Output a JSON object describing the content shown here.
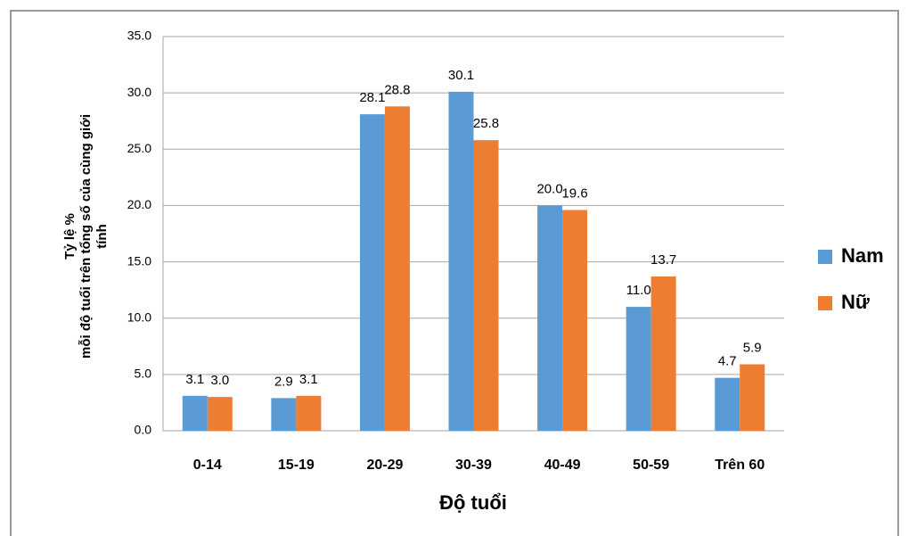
{
  "chart_data": {
    "type": "bar",
    "y_label": [
      "Tỷ lệ %",
      "mỗi độ tuổi trên tổng số của cùng giới",
      "tính"
    ],
    "x_label": "Độ tuổi",
    "categories": [
      "0-14",
      "15-19",
      "20-29",
      "30-39",
      "40-49",
      "50-59",
      "Trên 60"
    ],
    "series": [
      {
        "name": "Nam",
        "color": "#5b9bd5",
        "values": [
          3.1,
          2.9,
          28.1,
          30.1,
          20.0,
          11.0,
          4.7
        ],
        "value_labels": [
          "3.1",
          "2.9",
          "28.1",
          "30.1",
          "20.0",
          "11.0",
          "4.7"
        ]
      },
      {
        "name": "Nữ",
        "color": "#ed7d31",
        "values": [
          3.0,
          3.1,
          28.8,
          25.8,
          19.6,
          13.7,
          5.9
        ],
        "value_labels": [
          "3.0",
          "3.1",
          "28.8",
          "25.8",
          "19.6",
          "13.7",
          "5.9"
        ]
      }
    ],
    "ylim": [
      0,
      35
    ],
    "yticks": [
      {
        "value": 0,
        "label": "0.0"
      },
      {
        "value": 5,
        "label": "5.0"
      },
      {
        "value": 10,
        "label": "10.0"
      },
      {
        "value": 15,
        "label": "15.0"
      },
      {
        "value": 20,
        "label": "20.0"
      },
      {
        "value": 25,
        "label": "25.0"
      },
      {
        "value": 30,
        "label": "30.0"
      },
      {
        "value": 35,
        "label": "35.0"
      }
    ],
    "grid": true,
    "legend": "right"
  }
}
